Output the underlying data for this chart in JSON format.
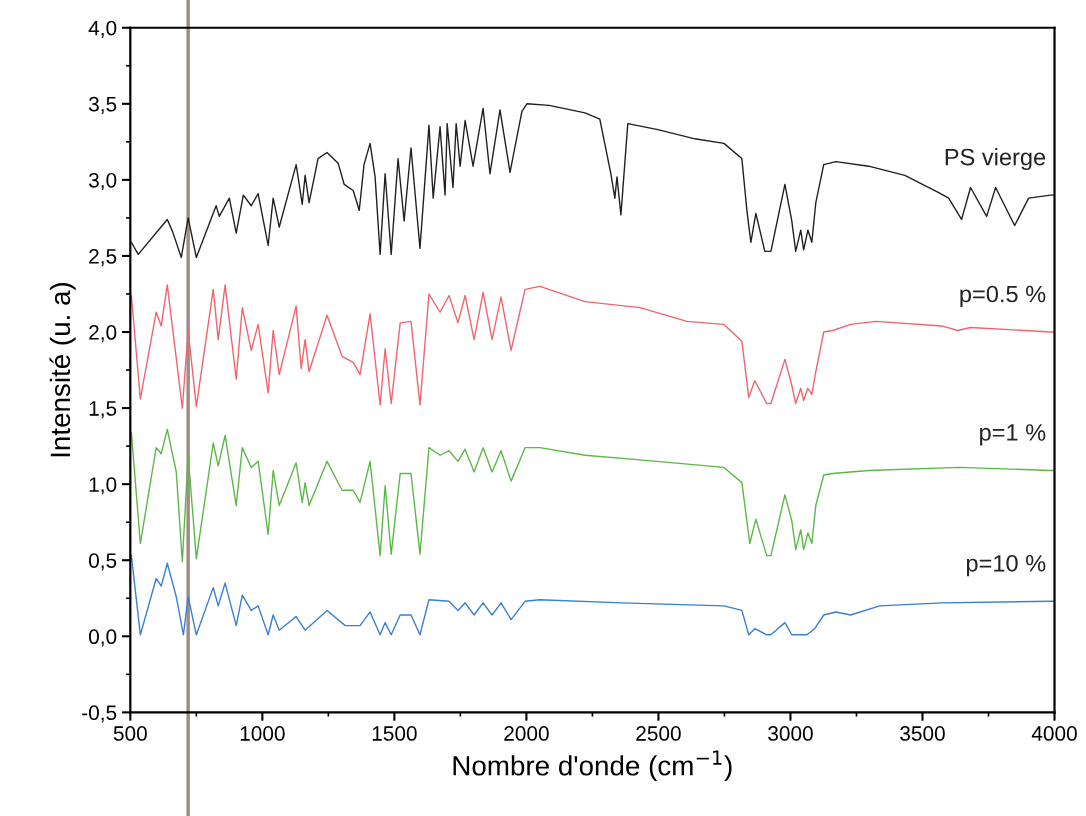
{
  "chart_data": {
    "type": "line",
    "xlabel": "Nombre d'onde (cm$^{−1}$)",
    "ylabel": "Intensité (u. a)",
    "xlim": [
      500,
      4000
    ],
    "xticks": [
      500,
      1000,
      1500,
      2000,
      2500,
      3000,
      3500,
      4000
    ],
    "ylim": [
      -0.5,
      4.0
    ],
    "yticks": [
      {
        "value": -0.5,
        "label": "-0,5"
      },
      {
        "value": 0,
        "label": "0,0"
      },
      {
        "value": 0.5,
        "label": "0,5"
      },
      {
        "value": 1.0,
        "label": "1,0"
      },
      {
        "value": 1.5,
        "label": "1,5"
      },
      {
        "value": 2.0,
        "label": "2,0"
      },
      {
        "value": 2.5,
        "label": "2,5"
      },
      {
        "value": 3.0,
        "label": "3,0"
      },
      {
        "value": 3.5,
        "label": "3,5"
      },
      {
        "value": 4.0,
        "label": "4,0"
      }
    ],
    "grid": false,
    "legend": false,
    "marker": "none",
    "line_style": "solid",
    "ref_lines": [
      {
        "axis": "x",
        "value": 719,
        "label": null,
        "color": "#9e8c86"
      }
    ],
    "series": [
      {
        "name": "PS vierge",
        "color": "#231f20",
        "x": [
          504,
          530,
          640,
          660,
          693,
          719,
          750,
          825,
          837,
          875,
          901,
          928,
          958,
          984,
          1022,
          1041,
          1064,
          1128,
          1151,
          1162,
          1177,
          1211,
          1245,
          1287,
          1310,
          1344,
          1367,
          1385,
          1408,
          1427,
          1446,
          1465,
          1488,
          1514,
          1537,
          1563,
          1597,
          1631,
          1647,
          1673,
          1692,
          1700,
          1722,
          1734,
          1749,
          1768,
          1798,
          1836,
          1862,
          1900,
          1938,
          1983,
          2002,
          2086,
          2222,
          2278,
          2320,
          2335,
          2343,
          2358,
          2384,
          2498,
          2638,
          2748,
          2816,
          2835,
          2850,
          2869,
          2903,
          2926,
          2979,
          3005,
          3020,
          3039,
          3050,
          3066,
          3081,
          3096,
          3126,
          3172,
          3296,
          3433,
          3558,
          3599,
          3648,
          3682,
          3743,
          3777,
          3849,
          3902,
          3985,
          4000
        ],
        "values": [
          2.59,
          2.51,
          2.74,
          2.66,
          2.49,
          2.75,
          2.49,
          2.83,
          2.76,
          2.88,
          2.65,
          2.9,
          2.83,
          2.91,
          2.57,
          2.88,
          2.69,
          3.1,
          2.84,
          3.03,
          2.85,
          3.14,
          3.18,
          3.11,
          2.97,
          2.93,
          2.8,
          3.1,
          3.24,
          3.02,
          2.51,
          3.04,
          2.51,
          3.14,
          2.73,
          3.21,
          2.55,
          3.36,
          2.88,
          3.35,
          2.9,
          3.37,
          2.95,
          3.37,
          3.09,
          3.39,
          3.09,
          3.47,
          3.04,
          3.46,
          3.05,
          3.45,
          3.5,
          3.49,
          3.44,
          3.4,
          3.04,
          2.88,
          3.02,
          2.77,
          3.37,
          3.33,
          3.27,
          3.24,
          3.14,
          2.8,
          2.59,
          2.78,
          2.53,
          2.53,
          2.97,
          2.73,
          2.53,
          2.67,
          2.54,
          2.67,
          2.59,
          2.85,
          3.1,
          3.12,
          3.09,
          3.03,
          2.92,
          2.88,
          2.74,
          2.95,
          2.76,
          2.95,
          2.7,
          2.88,
          2.9,
          2.9
        ]
      },
      {
        "name": "p=0.5 %",
        "color": "#f0646e",
        "x": [
          504,
          538,
          598,
          617,
          640,
          697,
          719,
          750,
          814,
          833,
          859,
          901,
          924,
          958,
          984,
          1022,
          1041,
          1064,
          1128,
          1147,
          1162,
          1177,
          1245,
          1302,
          1344,
          1370,
          1408,
          1446,
          1465,
          1488,
          1522,
          1563,
          1597,
          1631,
          1673,
          1707,
          1741,
          1768,
          1802,
          1836,
          1870,
          1904,
          1942,
          1995,
          2051,
          2222,
          2430,
          2608,
          2748,
          2816,
          2842,
          2865,
          2910,
          2926,
          2979,
          3005,
          3020,
          3039,
          3050,
          3066,
          3081,
          3096,
          3126,
          3160,
          3228,
          3323,
          3573,
          3633,
          3682,
          3985,
          4000
        ],
        "values": [
          2.24,
          1.56,
          2.13,
          2.04,
          2.31,
          1.5,
          2.01,
          1.51,
          2.28,
          1.95,
          2.31,
          1.69,
          2.16,
          1.88,
          2.05,
          1.6,
          2.01,
          1.72,
          2.17,
          1.76,
          1.95,
          1.74,
          2.11,
          1.84,
          1.8,
          1.72,
          2.12,
          1.52,
          1.89,
          1.53,
          2.06,
          2.07,
          1.52,
          2.25,
          2.13,
          2.24,
          2.06,
          2.24,
          1.95,
          2.26,
          1.95,
          2.23,
          1.88,
          2.28,
          2.3,
          2.2,
          2.16,
          2.07,
          2.05,
          1.94,
          1.57,
          1.68,
          1.53,
          1.53,
          1.82,
          1.65,
          1.53,
          1.63,
          1.55,
          1.63,
          1.59,
          1.74,
          2.0,
          2.01,
          2.05,
          2.07,
          2.04,
          2.01,
          2.03,
          2.0,
          2.0
        ]
      },
      {
        "name": "p=1 %",
        "color": "#5cb846",
        "x": [
          504,
          538,
          598,
          617,
          640,
          674,
          697,
          719,
          750,
          814,
          833,
          859,
          901,
          924,
          958,
          984,
          1022,
          1041,
          1064,
          1128,
          1151,
          1162,
          1177,
          1245,
          1302,
          1344,
          1370,
          1408,
          1446,
          1465,
          1488,
          1522,
          1563,
          1597,
          1631,
          1673,
          1707,
          1741,
          1768,
          1802,
          1836,
          1870,
          1904,
          1942,
          1995,
          2051,
          2222,
          2430,
          2748,
          2816,
          2846,
          2869,
          2910,
          2926,
          2979,
          3005,
          3020,
          3039,
          3050,
          3066,
          3081,
          3096,
          3126,
          3160,
          3296,
          3641,
          3985,
          4000
        ],
        "values": [
          1.34,
          0.61,
          1.24,
          1.2,
          1.36,
          1.08,
          0.49,
          1.19,
          0.51,
          1.27,
          1.12,
          1.32,
          0.86,
          1.24,
          1.11,
          1.15,
          0.67,
          1.09,
          0.86,
          1.14,
          0.88,
          1.01,
          0.86,
          1.15,
          0.96,
          0.96,
          0.88,
          1.15,
          0.53,
          0.99,
          0.54,
          1.07,
          1.07,
          0.54,
          1.24,
          1.19,
          1.22,
          1.15,
          1.23,
          1.08,
          1.24,
          1.08,
          1.22,
          1.02,
          1.24,
          1.24,
          1.19,
          1.16,
          1.11,
          1.01,
          0.61,
          0.77,
          0.53,
          0.53,
          0.93,
          0.76,
          0.57,
          0.7,
          0.57,
          0.68,
          0.61,
          0.86,
          1.06,
          1.07,
          1.09,
          1.11,
          1.09,
          1.09
        ]
      },
      {
        "name": "p=10 %",
        "color": "#3a7fd0",
        "x": [
          504,
          538,
          598,
          617,
          640,
          674,
          701,
          719,
          750,
          814,
          833,
          859,
          901,
          924,
          958,
          984,
          1022,
          1041,
          1064,
          1128,
          1162,
          1245,
          1314,
          1370,
          1408,
          1446,
          1465,
          1488,
          1522,
          1563,
          1597,
          1631,
          1707,
          1741,
          1768,
          1802,
          1836,
          1870,
          1904,
          1942,
          1995,
          2051,
          2362,
          2748,
          2816,
          2842,
          2865,
          2910,
          2926,
          2979,
          3005,
          3062,
          3092,
          3126,
          3172,
          3228,
          3338,
          3573,
          3985,
          4000
        ],
        "values": [
          0.53,
          0.01,
          0.38,
          0.33,
          0.48,
          0.26,
          0.01,
          0.26,
          0.01,
          0.32,
          0.2,
          0.35,
          0.07,
          0.27,
          0.17,
          0.2,
          0.01,
          0.14,
          0.04,
          0.13,
          0.04,
          0.17,
          0.07,
          0.07,
          0.16,
          0.01,
          0.09,
          0.01,
          0.14,
          0.14,
          0.01,
          0.24,
          0.23,
          0.17,
          0.22,
          0.14,
          0.22,
          0.14,
          0.22,
          0.11,
          0.23,
          0.24,
          0.22,
          0.2,
          0.17,
          0.01,
          0.05,
          0.01,
          0.01,
          0.09,
          0.01,
          0.01,
          0.05,
          0.14,
          0.16,
          0.14,
          0.2,
          0.22,
          0.23,
          0.23
        ]
      }
    ]
  }
}
